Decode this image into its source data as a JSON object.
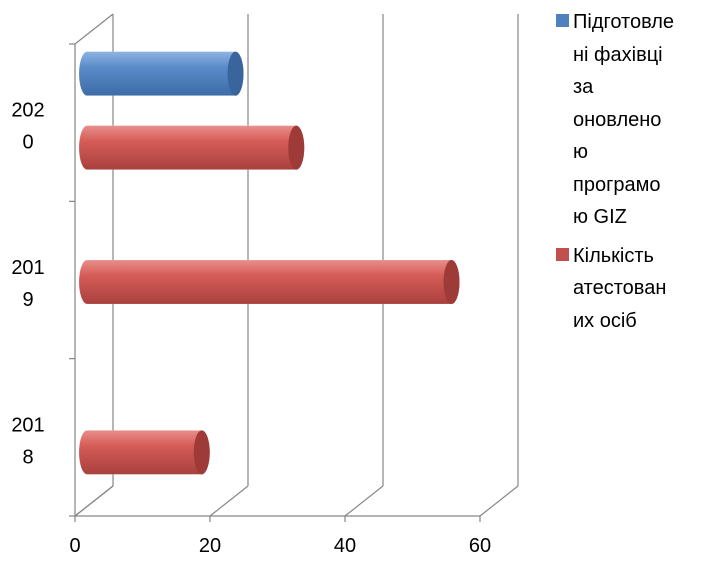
{
  "chart_data": {
    "type": "bar",
    "orientation": "horizontal",
    "style": "3d-cylinder",
    "categories": [
      "2018",
      "2019",
      "2020"
    ],
    "category_labels": [
      [
        "201",
        "8"
      ],
      [
        "201",
        "9"
      ],
      [
        "202",
        "0"
      ]
    ],
    "series": [
      {
        "name": "Підготовлені фахівці за оновленою програмою GIZ",
        "color": "#4f81bd",
        "values": [
          null,
          null,
          22
        ]
      },
      {
        "name": "Кількість атестованих осіб",
        "color": "#c0504d",
        "values": [
          17,
          54,
          31
        ]
      }
    ],
    "xlim": [
      0,
      60
    ],
    "xticks": [
      0,
      20,
      40,
      60
    ],
    "xlabel": "",
    "ylabel": "",
    "grid": true,
    "legend_position": "right"
  },
  "legend": {
    "items": [
      {
        "lines": [
          "Підготовле",
          "ні фахівці",
          "за",
          "оновлено",
          "ю",
          "програмо",
          "ю GIZ"
        ],
        "color": "#4f81bd"
      },
      {
        "lines": [
          "Кількість",
          "атестован",
          "их осіб"
        ],
        "color": "#c0504d"
      }
    ]
  }
}
